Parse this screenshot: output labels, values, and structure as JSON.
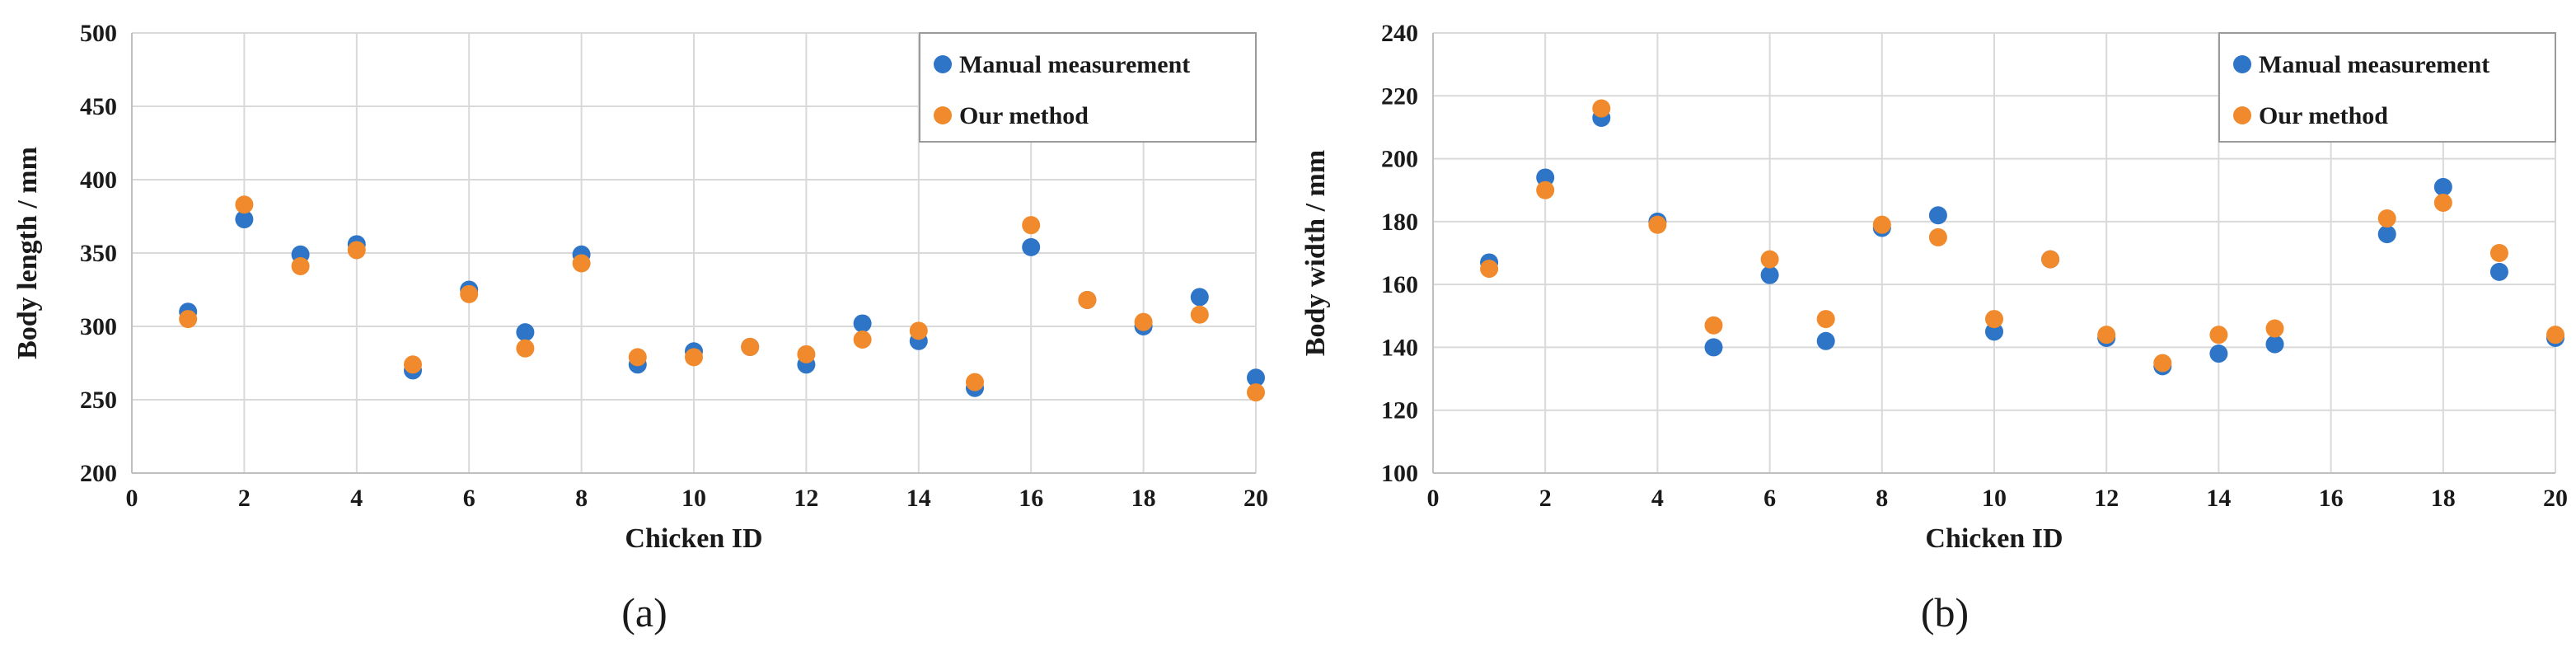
{
  "chart_data": [
    {
      "type": "scatter",
      "caption": "(a)",
      "xlabel": "Chicken ID",
      "ylabel": "Body length / mm",
      "xlim": [
        0,
        20
      ],
      "ylim": [
        200,
        500
      ],
      "xticks": [
        0,
        2,
        4,
        6,
        8,
        10,
        12,
        14,
        16,
        18,
        20
      ],
      "yticks": [
        200,
        250,
        300,
        350,
        400,
        450,
        500
      ],
      "grid": true,
      "legend_position": "top-right",
      "series": [
        {
          "name": "Manual measurement",
          "color": "#2e75c7",
          "x": [
            1,
            2,
            3,
            4,
            5,
            6,
            7,
            8,
            9,
            10,
            11,
            12,
            13,
            14,
            15,
            16,
            17,
            18,
            19,
            20
          ],
          "y": [
            310,
            373,
            349,
            356,
            270,
            325,
            296,
            349,
            274,
            283,
            286,
            274,
            302,
            290,
            258,
            354,
            318,
            300,
            320,
            265
          ]
        },
        {
          "name": "Our method",
          "color": "#f08a2c",
          "x": [
            1,
            2,
            3,
            4,
            5,
            6,
            7,
            8,
            9,
            10,
            11,
            12,
            13,
            14,
            15,
            16,
            17,
            18,
            19,
            20
          ],
          "y": [
            305,
            383,
            341,
            352,
            274,
            322,
            285,
            343,
            279,
            279,
            286,
            281,
            291,
            297,
            262,
            369,
            318,
            303,
            308,
            255
          ]
        }
      ]
    },
    {
      "type": "scatter",
      "caption": "(b)",
      "xlabel": "Chicken ID",
      "ylabel": "Body width / mm",
      "xlim": [
        0,
        20
      ],
      "ylim": [
        100,
        240
      ],
      "xticks": [
        0,
        2,
        4,
        6,
        8,
        10,
        12,
        14,
        16,
        18,
        20
      ],
      "yticks": [
        100,
        120,
        140,
        160,
        180,
        200,
        220,
        240
      ],
      "grid": true,
      "legend_position": "top-right",
      "series": [
        {
          "name": "Manual measurement",
          "color": "#2e75c7",
          "x": [
            1,
            2,
            3,
            4,
            5,
            6,
            7,
            8,
            9,
            10,
            11,
            12,
            13,
            14,
            15,
            17,
            18,
            19,
            20
          ],
          "y": [
            167,
            194,
            213,
            180,
            140,
            163,
            142,
            178,
            182,
            145,
            168,
            143,
            134,
            138,
            141,
            176,
            191,
            164,
            143
          ]
        },
        {
          "name": "Our method",
          "color": "#f08a2c",
          "x": [
            1,
            2,
            3,
            4,
            5,
            6,
            7,
            8,
            9,
            10,
            11,
            12,
            13,
            14,
            15,
            17,
            18,
            19,
            20
          ],
          "y": [
            165,
            190,
            216,
            179,
            147,
            168,
            149,
            179,
            175,
            149,
            168,
            144,
            135,
            144,
            146,
            181,
            186,
            170,
            144
          ]
        }
      ]
    }
  ]
}
